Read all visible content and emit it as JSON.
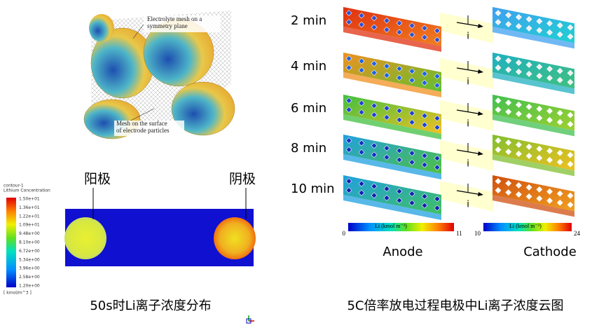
{
  "mesh_figure": {
    "label_top": [
      "Electrolyte mesh on a",
      "symmetry plane"
    ],
    "label_bottom": [
      "Mesh on the surface",
      "of electrode particles"
    ]
  },
  "contour_legend": {
    "title": "contour-1",
    "quantity": "Lithium Concentration",
    "levels": [
      "1.50e+01",
      "1.36e+01",
      "1.22e+01",
      "1.09e+01",
      "9.48e+00",
      "8.10e+00",
      "6.72e+00",
      "5.34e+00",
      "3.96e+00",
      "2.58e+00",
      "1.20e+00"
    ],
    "unit": "[ kmol/m^3 ]"
  },
  "cross_section": {
    "anode_label": "阳极",
    "cathode_label": "阴极",
    "caption": "50s时Li离子浓度分布"
  },
  "time_series": {
    "rows": [
      {
        "time": "2 min",
        "current": "i"
      },
      {
        "time": "4 min",
        "current": "i"
      },
      {
        "time": "6 min",
        "current": "i"
      },
      {
        "time": "8 min",
        "current": "i"
      },
      {
        "time": "10 min",
        "current": "i"
      }
    ],
    "anode_scale": {
      "title": "Li (kmol m⁻³)",
      "min": 0,
      "max": 11,
      "name": "Anode"
    },
    "cathode_scale": {
      "title": "Li (kmol m⁻³)",
      "min": 10,
      "max": 24,
      "name": "Cathode"
    },
    "caption": "5C倍率放电过程电极中Li离子浓度云图"
  }
}
